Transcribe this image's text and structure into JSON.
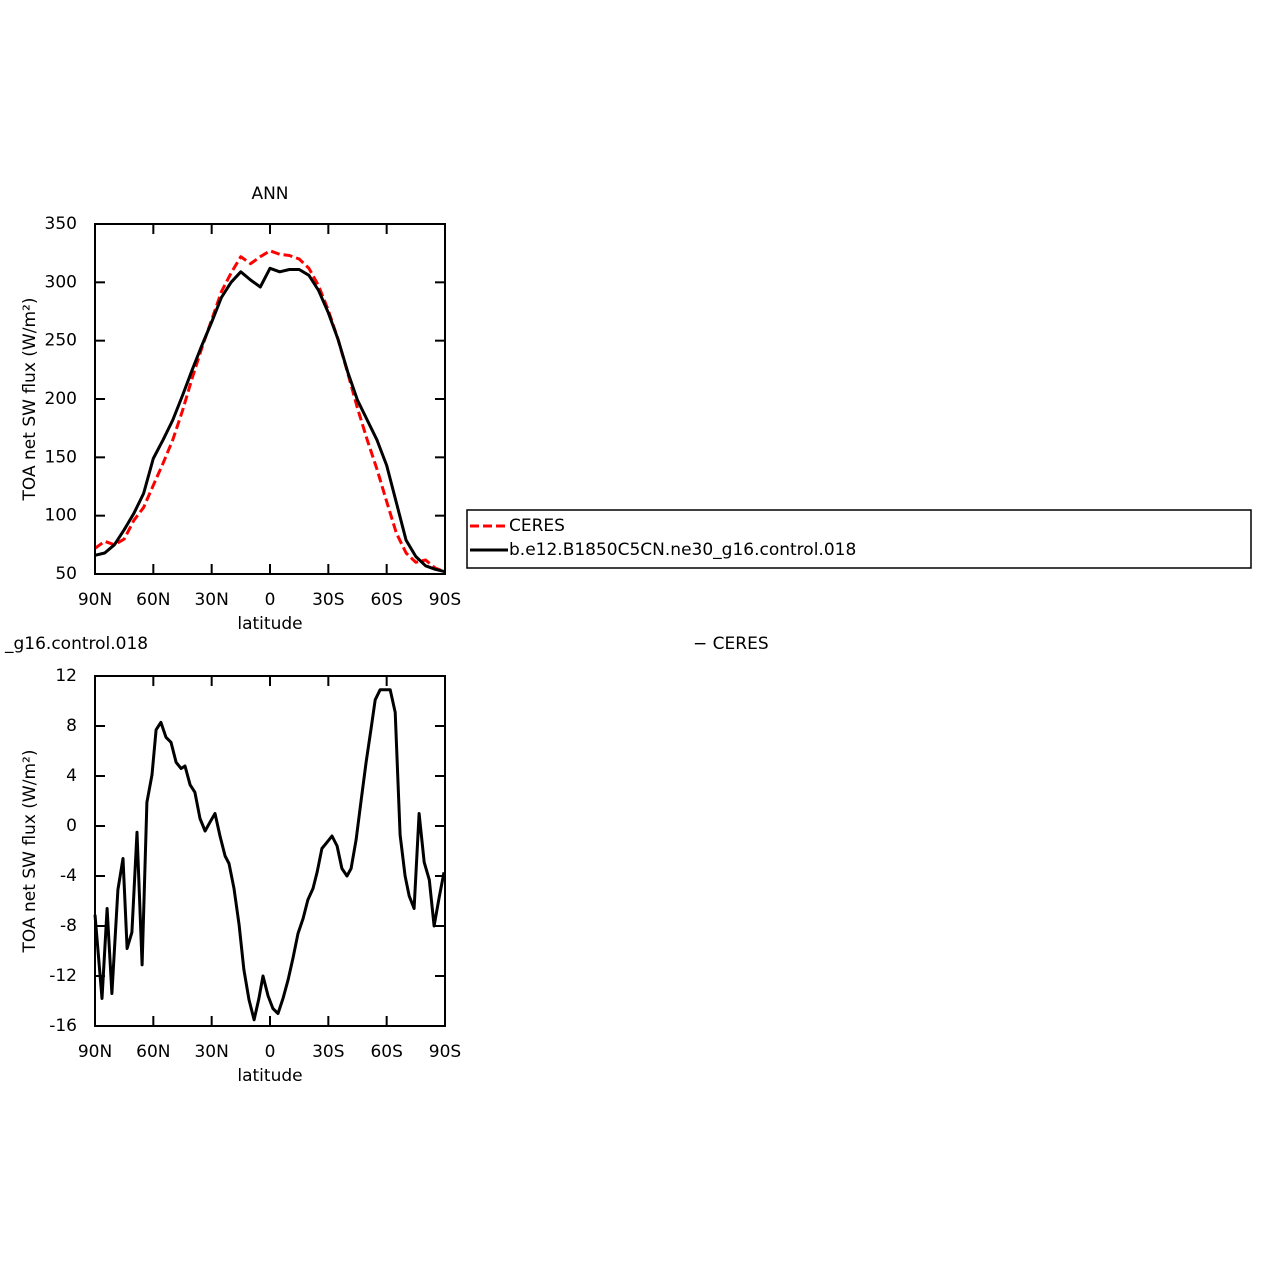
{
  "chart_data": [
    {
      "type": "line",
      "title": "ANN",
      "xlabel": "latitude",
      "ylabel": "TOA net SW flux (W/m²)",
      "x": [
        90,
        85,
        80,
        75,
        70,
        65,
        60,
        55,
        50,
        45,
        40,
        35,
        30,
        25,
        20,
        15,
        10,
        5,
        0,
        -5,
        -10,
        -15,
        -20,
        -25,
        -30,
        -35,
        -40,
        -45,
        -50,
        -55,
        -60,
        -65,
        -70,
        -75,
        -80,
        -85,
        -90
      ],
      "xlim": [
        90,
        -90
      ],
      "xticks": [
        {
          "value": 90,
          "label": "90N"
        },
        {
          "value": 60,
          "label": "60N"
        },
        {
          "value": 30,
          "label": "30N"
        },
        0,
        {
          "value": -30,
          "label": "30S"
        },
        {
          "value": -60,
          "label": "60S"
        },
        {
          "value": -90,
          "label": "90S"
        }
      ],
      "ylim": [
        50,
        350
      ],
      "yticks": [
        50,
        100,
        150,
        200,
        250,
        300,
        350
      ],
      "series": [
        {
          "name": "CERES",
          "color": "#ff0000",
          "dashed": true,
          "values": [
            72,
            78,
            75,
            80,
            96,
            107,
            126,
            145,
            165,
            190,
            218,
            244,
            268,
            292,
            308,
            322,
            316,
            322,
            327,
            324,
            323,
            320,
            312,
            297,
            276,
            251,
            222,
            192,
            165,
            140,
            112,
            85,
            68,
            60,
            62,
            55,
            52
          ]
        },
        {
          "name": "b.e12.B1850C5CN.ne30_g16.control.018",
          "color": "#000000",
          "dashed": false,
          "values": [
            66,
            68,
            75,
            88,
            102,
            119,
            149,
            165,
            182,
            203,
            225,
            246,
            266,
            287,
            300,
            309,
            302,
            296,
            312,
            309,
            311,
            311,
            306,
            293,
            274,
            251,
            223,
            199,
            182,
            165,
            143,
            111,
            79,
            65,
            57,
            54,
            52
          ]
        }
      ]
    },
    {
      "type": "line",
      "title_parts": [
        "_g16.control.018",
        "−  CERES"
      ],
      "xlabel": "latitude",
      "ylabel": "TOA net SW flux (W/m²)",
      "x": [
        90,
        86.4,
        83.8,
        81.3,
        78.2,
        75.6,
        73.5,
        71,
        68.4,
        65.8,
        63.3,
        60.7,
        58.6,
        56.1,
        53.5,
        50.9,
        48.3,
        45.7,
        43.7,
        41.1,
        38.6,
        36,
        33.4,
        30.9,
        28.3,
        25.7,
        23.1,
        21.1,
        18.5,
        15.9,
        13.4,
        10.8,
        8.2,
        5.7,
        3.6,
        1,
        -1.5,
        -4.1,
        -6.7,
        -9.3,
        -11.8,
        -14.4,
        -17,
        -19.5,
        -22.1,
        -24.2,
        -26.7,
        -29.3,
        -31.9,
        -34.5,
        -37,
        -39.6,
        -41.7,
        -44.3,
        -46.9,
        -49.4,
        -52,
        -54.1,
        -56.6,
        -59.2,
        -61.8,
        -64.4,
        -66.9,
        -69.5,
        -71.6,
        -74.1,
        -76.7,
        -79.3,
        -81.9,
        -84.4,
        -87,
        -89.5
      ],
      "xlim": [
        90,
        -90
      ],
      "xticks": [
        {
          "value": 90,
          "label": "90N"
        },
        {
          "value": 60,
          "label": "60N"
        },
        {
          "value": 30,
          "label": "30N"
        },
        0,
        {
          "value": -30,
          "label": "30S"
        },
        {
          "value": -60,
          "label": "60S"
        },
        {
          "value": -90,
          "label": "90S"
        }
      ],
      "ylim": [
        -16,
        12
      ],
      "yticks": [
        -16,
        -12,
        -8,
        -4,
        0,
        4,
        8,
        12
      ],
      "series": [
        {
          "color": "#000000",
          "dashed": false,
          "values": [
            -7.1,
            -13.8,
            -6.6,
            -13.4,
            -5.1,
            -2.6,
            -9.8,
            -8.5,
            -0.5,
            -11.1,
            1.9,
            4.1,
            7.7,
            8.3,
            7.1,
            6.7,
            5.1,
            4.6,
            4.8,
            3.3,
            2.7,
            0.6,
            -0.4,
            0.3,
            1.0,
            -0.8,
            -2.4,
            -3.0,
            -5.0,
            -7.9,
            -11.5,
            -13.9,
            -15.5,
            -13.8,
            -12.0,
            -13.6,
            -14.6,
            -15.0,
            -13.8,
            -12.3,
            -10.6,
            -8.6,
            -7.4,
            -5.9,
            -5.0,
            -3.7,
            -1.8,
            -1.3,
            -0.8,
            -1.6,
            -3.4,
            -4.0,
            -3.4,
            -1.1,
            2.1,
            5.1,
            7.8,
            10.1,
            10.9,
            10.9,
            10.9,
            9.1,
            -0.7,
            -4.0,
            -5.6,
            -6.6,
            1.0,
            -2.9,
            -4.3,
            -8.0,
            -5.7,
            -3.7
          ]
        }
      ]
    }
  ]
}
